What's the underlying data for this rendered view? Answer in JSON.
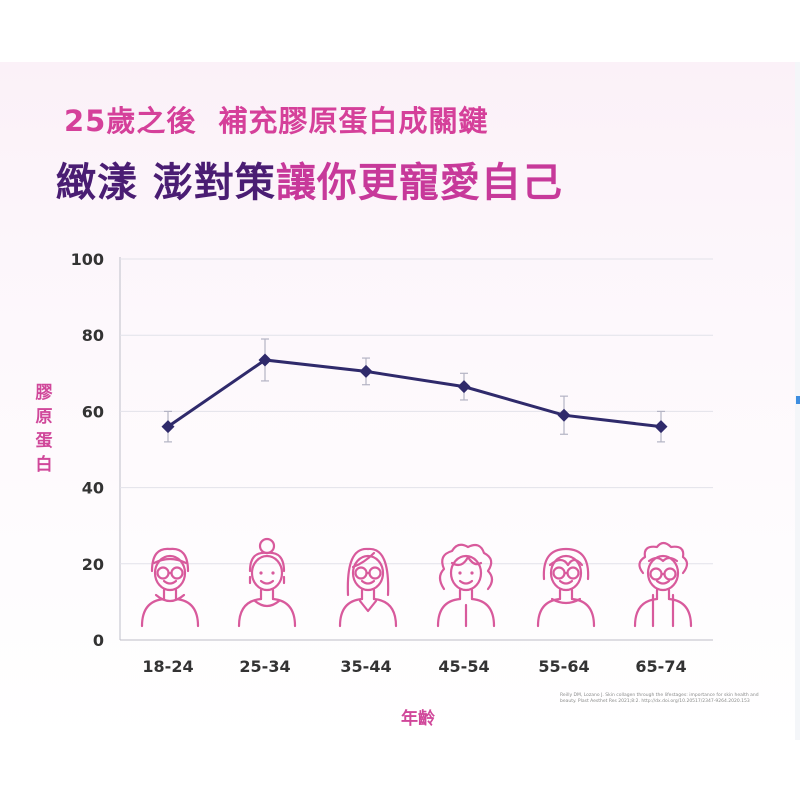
{
  "title_line1": "25歲之後  補充膠原蛋白成關鍵",
  "title_line2_part1": "緻漾 澎對策",
  "title_line2_part2": "讓你更寵愛自己",
  "source_note": "Reilly DM, Lozano J. Skin collagen through the lifestages: importance for skin health and beauty. Plast Aesthet Res 2021;8:2. http://dx.doi.org/10.20517/2347-9264.2020.153",
  "colors": {
    "title_pink": "#d5409a",
    "title_purple": "#4a1d73",
    "line": "#2f2a6b",
    "icon": "#d85a9c",
    "ylabel": "#d0479a"
  },
  "chart_data": {
    "type": "line",
    "categories": [
      "18-24",
      "25-34",
      "35-44",
      "45-54",
      "55-64",
      "65-74"
    ],
    "values": [
      56,
      73.5,
      70.5,
      66.5,
      59,
      56
    ],
    "error": [
      4,
      5.5,
      3.5,
      3.5,
      5,
      4
    ],
    "ylim": [
      0,
      100
    ],
    "yticks": [
      0,
      20,
      40,
      60,
      80,
      100
    ],
    "ylabel": "膠原蛋白",
    "xlabel": "年齡",
    "grid": true,
    "icons": [
      "woman-glasses-icon",
      "woman-bun-icon",
      "woman-glasses-long-hair-icon",
      "woman-curly-hair-icon",
      "senior-woman-glasses-icon",
      "elderly-woman-glasses-icon"
    ]
  }
}
